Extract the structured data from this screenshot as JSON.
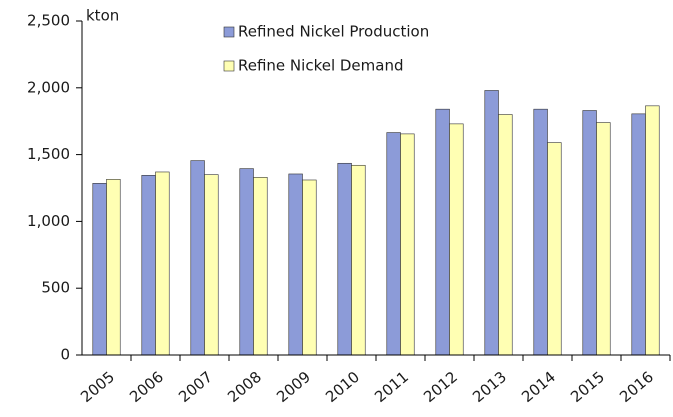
{
  "chart_data": {
    "type": "bar",
    "unit_label": "kton",
    "categories": [
      "2005",
      "2006",
      "2007",
      "2008",
      "2009",
      "2010",
      "2011",
      "2012",
      "2013",
      "2014",
      "2015",
      "2016"
    ],
    "series": [
      {
        "name": "Refined Nickel Production",
        "color": "#8c9bd8",
        "values": [
          1285,
          1345,
          1455,
          1395,
          1355,
          1435,
          1665,
          1840,
          1980,
          1840,
          1830,
          1805
        ]
      },
      {
        "name": "Refine Nickel Demand",
        "color": "#ffffb3",
        "values": [
          1315,
          1370,
          1350,
          1330,
          1310,
          1420,
          1655,
          1730,
          1800,
          1590,
          1740,
          1865
        ]
      }
    ],
    "ylim": [
      0,
      2500
    ],
    "yticks": [
      0,
      500,
      {
        "value": 1000,
        "label": "1,000"
      },
      {
        "value": 1500,
        "label": "1,500"
      },
      {
        "value": 2000,
        "label": "2,000"
      },
      {
        "value": 2500,
        "label": "2,500"
      }
    ],
    "grid": false
  }
}
